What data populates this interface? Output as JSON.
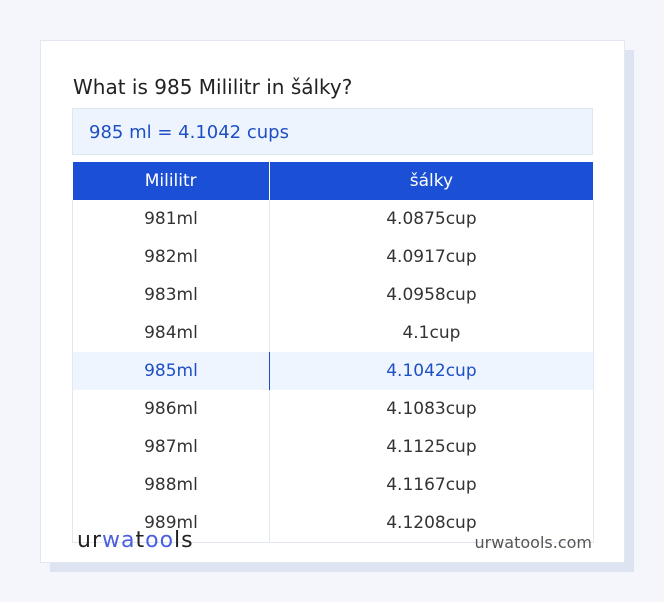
{
  "title": "What is 985 Mililitr in šálky?",
  "result": "985 ml = 4.1042 cups",
  "table": {
    "headers": [
      "Mililitr",
      "šálky"
    ],
    "rows": [
      [
        "981ml",
        "4.0875cup"
      ],
      [
        "982ml",
        "4.0917cup"
      ],
      [
        "983ml",
        "4.0958cup"
      ],
      [
        "984ml",
        "4.1cup"
      ],
      [
        "985ml",
        "4.1042cup"
      ],
      [
        "986ml",
        "4.1083cup"
      ],
      [
        "987ml",
        "4.1125cup"
      ],
      [
        "988ml",
        "4.1167cup"
      ],
      [
        "989ml",
        "4.1208cup"
      ]
    ],
    "highlighted_row": 4
  },
  "footer": {
    "logo": "urwatools",
    "site": "urwatools.com"
  },
  "colors": {
    "accent": "#1a4fd6",
    "highlight_bg": "#eef5fe"
  }
}
